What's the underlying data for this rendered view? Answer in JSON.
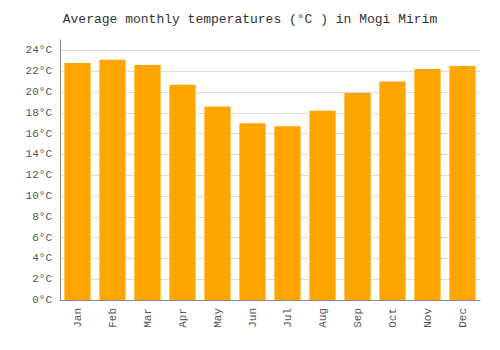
{
  "chart_data": {
    "type": "bar",
    "title": "Average monthly temperatures (°C ) in Mogi Mirim",
    "categories": [
      "Jan",
      "Feb",
      "Mar",
      "Apr",
      "May",
      "Jun",
      "Jul",
      "Aug",
      "Sep",
      "Oct",
      "Nov",
      "Dec"
    ],
    "values": [
      22.8,
      23.1,
      22.6,
      20.7,
      18.6,
      17.0,
      16.7,
      18.2,
      19.9,
      21.0,
      22.2,
      22.5
    ],
    "color": "#FFA500",
    "ylim": [
      0,
      25
    ],
    "yticks": [
      {
        "value": 0,
        "label": "0°C"
      },
      {
        "value": 2,
        "label": "2°C"
      },
      {
        "value": 4,
        "label": "4°C"
      },
      {
        "value": 6,
        "label": "6°C"
      },
      {
        "value": 8,
        "label": "8°C"
      },
      {
        "value": 10,
        "label": "10°C"
      },
      {
        "value": 12,
        "label": "12°C"
      },
      {
        "value": 14,
        "label": "14°C"
      },
      {
        "value": 16,
        "label": "16°C"
      },
      {
        "value": 18,
        "label": "18°C"
      },
      {
        "value": 20,
        "label": "20°C"
      },
      {
        "value": 22,
        "label": "22°C"
      },
      {
        "value": 24,
        "label": "24°C"
      }
    ],
    "grid": true
  }
}
